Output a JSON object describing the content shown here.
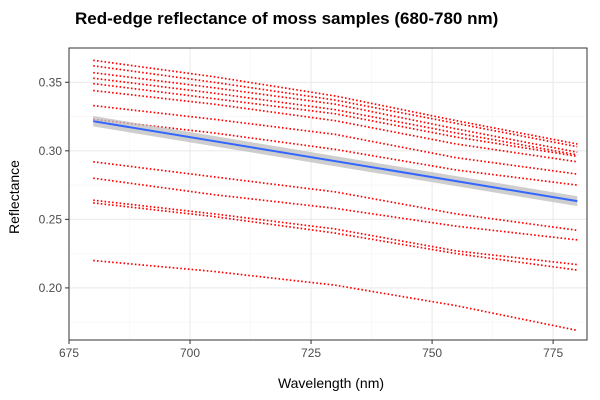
{
  "chart_data": {
    "type": "line",
    "title": "Red-edge reflectance of moss samples (680-780 nm)",
    "xlabel": "Wavelength (nm)",
    "ylabel": "Reflectance",
    "xlim": [
      675,
      782
    ],
    "ylim": [
      0.162,
      0.375
    ],
    "x_ticks": [
      675,
      700,
      725,
      750,
      775
    ],
    "y_ticks": [
      0.2,
      0.25,
      0.3,
      0.35
    ],
    "x_tick_labels": [
      "675",
      "700",
      "725",
      "750",
      "775"
    ],
    "y_tick_labels": [
      "0.20",
      "0.25",
      "0.30",
      "0.35"
    ],
    "grid": true,
    "legend": "none",
    "colors": {
      "samples": "#ff0000",
      "fit": "#3366ff",
      "ribbon": "#bdbdbd",
      "grid_major": "#ebebeb",
      "grid_minor": "#f5f5f5",
      "panel_border": "#333333"
    },
    "series": [
      {
        "x": [
          680,
          705,
          730,
          755,
          780
        ],
        "values": [
          0.366,
          0.354,
          0.34,
          0.322,
          0.305
        ]
      },
      {
        "x": [
          680,
          705,
          730,
          755,
          780
        ],
        "values": [
          0.362,
          0.35,
          0.337,
          0.32,
          0.303
        ]
      },
      {
        "x": [
          680,
          705,
          730,
          755,
          780
        ],
        "values": [
          0.357,
          0.346,
          0.334,
          0.316,
          0.299
        ]
      },
      {
        "x": [
          680,
          705,
          730,
          755,
          780
        ],
        "values": [
          0.353,
          0.342,
          0.33,
          0.313,
          0.297
        ]
      },
      {
        "x": [
          680,
          705,
          730,
          755,
          780
        ],
        "values": [
          0.349,
          0.338,
          0.327,
          0.31,
          0.296
        ]
      },
      {
        "x": [
          680,
          705,
          730,
          755,
          780
        ],
        "values": [
          0.344,
          0.334,
          0.322,
          0.305,
          0.292
        ]
      },
      {
        "x": [
          680,
          705,
          730,
          755,
          780
        ],
        "values": [
          0.333,
          0.323,
          0.312,
          0.295,
          0.283
        ]
      },
      {
        "x": [
          680,
          705,
          730,
          755,
          780
        ],
        "values": [
          0.323,
          0.313,
          0.301,
          0.286,
          0.275
        ]
      },
      {
        "x": [
          680,
          705,
          730,
          755,
          780
        ],
        "values": [
          0.292,
          0.281,
          0.27,
          0.254,
          0.242
        ]
      },
      {
        "x": [
          680,
          705,
          730,
          755,
          780
        ],
        "values": [
          0.28,
          0.268,
          0.258,
          0.245,
          0.235
        ]
      },
      {
        "x": [
          680,
          705,
          730,
          755,
          780
        ],
        "values": [
          0.264,
          0.254,
          0.243,
          0.227,
          0.217
        ]
      },
      {
        "x": [
          680,
          705,
          730,
          755,
          780
        ],
        "values": [
          0.262,
          0.252,
          0.24,
          0.225,
          0.213
        ]
      },
      {
        "x": [
          680,
          705,
          730,
          755,
          780
        ],
        "values": [
          0.22,
          0.212,
          0.202,
          0.187,
          0.169
        ]
      }
    ],
    "fit": {
      "method": "linear",
      "x": [
        680,
        780
      ],
      "values": [
        0.3216,
        0.2633
      ],
      "ci_lower": [
        0.3178,
        0.2597
      ],
      "ci_upper": [
        0.3254,
        0.2669
      ]
    }
  }
}
